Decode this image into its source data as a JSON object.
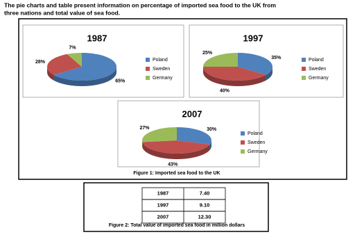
{
  "header": {
    "title_line1": "The pie charts and table present information on percentage of imported sea food to the UK from",
    "title_line2": "three nations and total value of sea food."
  },
  "chart_data": [
    {
      "type": "pie",
      "title": "1987",
      "categories": [
        "Poland",
        "Sweden",
        "Germany"
      ],
      "values": [
        65,
        28,
        7
      ],
      "value_labels": [
        "65%",
        "28%",
        "7%"
      ],
      "colors": [
        "#4f81bd",
        "#c0504d",
        "#9bbb59"
      ],
      "legend": "right"
    },
    {
      "type": "pie",
      "title": "1997",
      "categories": [
        "Poland",
        "Sweden",
        "Germany"
      ],
      "values": [
        35,
        40,
        25
      ],
      "value_labels": [
        "35%",
        "40%",
        "25%"
      ],
      "colors": [
        "#4f81bd",
        "#c0504d",
        "#9bbb59"
      ],
      "legend": "right"
    },
    {
      "type": "pie",
      "title": "2007",
      "categories": [
        "Poland",
        "Sweden",
        "Germany"
      ],
      "values": [
        30,
        43,
        27
      ],
      "value_labels": [
        "30%",
        "43%",
        "27%"
      ],
      "colors": [
        "#4f81bd",
        "#c0504d",
        "#9bbb59"
      ],
      "legend": "right"
    }
  ],
  "figure1_caption": "Figure 1: Imported sea food to the UK",
  "table": {
    "rows": [
      [
        "1987",
        "7.40"
      ],
      [
        "1997",
        "9.10"
      ],
      [
        "2007",
        "12.30"
      ]
    ],
    "caption": "Figure 2: Total value of imported sea food in million dollars"
  }
}
